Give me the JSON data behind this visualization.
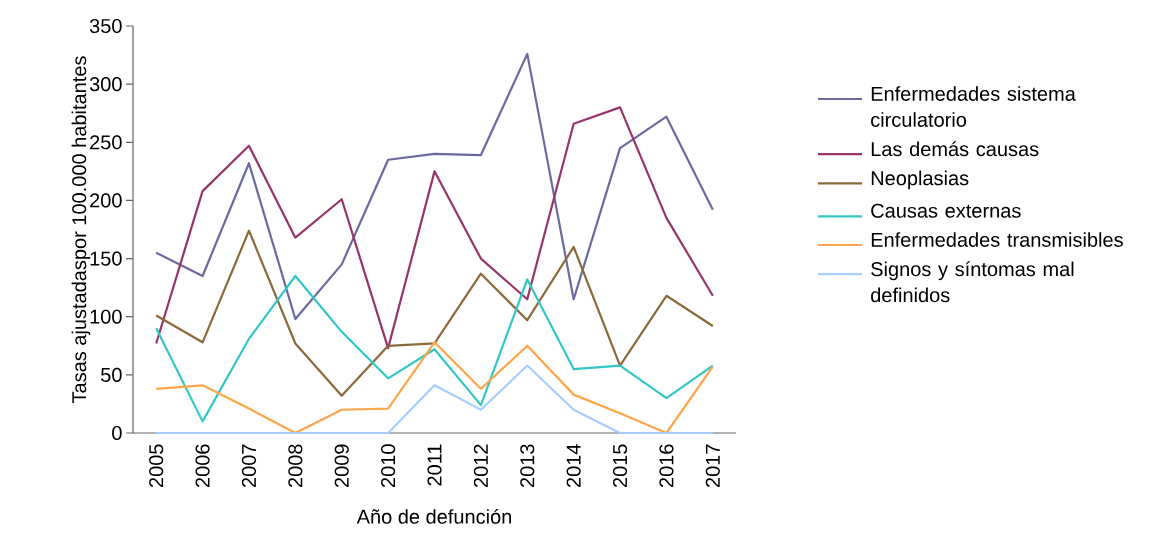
{
  "chart_data": {
    "type": "line",
    "xlabel": "Año de defunción",
    "ylabel": "Tasas ajustadaspor 100.000 habitantes",
    "categories": [
      "2005",
      "2006",
      "2007",
      "2008",
      "2009",
      "2010",
      "2011",
      "2012",
      "2013",
      "2014",
      "2015",
      "2016",
      "2017"
    ],
    "ylim": [
      0,
      350
    ],
    "yticks": [
      0,
      50,
      100,
      150,
      200,
      250,
      300,
      350
    ],
    "grid": false,
    "legend": "right",
    "line_style": "solid",
    "series": [
      {
        "name": "Enfermedades sistema circulatorio",
        "color": "#6a6aa0",
        "values": [
          155,
          135,
          232,
          98,
          145,
          235,
          240,
          239,
          326,
          115,
          245,
          272,
          192
        ]
      },
      {
        "name": "Las demás causas",
        "color": "#96356a",
        "values": [
          77,
          208,
          247,
          168,
          201,
          73,
          225,
          150,
          115,
          266,
          280,
          185,
          118
        ]
      },
      {
        "name": "Neoplasias",
        "color": "#8a6a3a",
        "values": [
          101,
          78,
          174,
          77,
          32,
          75,
          77,
          137,
          97,
          160,
          58,
          118,
          92
        ]
      },
      {
        "name": "Causas externas",
        "color": "#33c6c6",
        "values": [
          90,
          10,
          81,
          135,
          87,
          47,
          72,
          24,
          132,
          55,
          58,
          30,
          58
        ]
      },
      {
        "name": "Enfermedades transmisibles",
        "color": "#ffa54a",
        "values": [
          38,
          41,
          21,
          0,
          20,
          21,
          78,
          38,
          75,
          33,
          17,
          0,
          57
        ]
      },
      {
        "name": "Signos y síntomas mal definidos",
        "color": "#a6cfff",
        "values": [
          0,
          0,
          0,
          0,
          0,
          0,
          41,
          20,
          58,
          20,
          0,
          0,
          0
        ]
      }
    ]
  }
}
